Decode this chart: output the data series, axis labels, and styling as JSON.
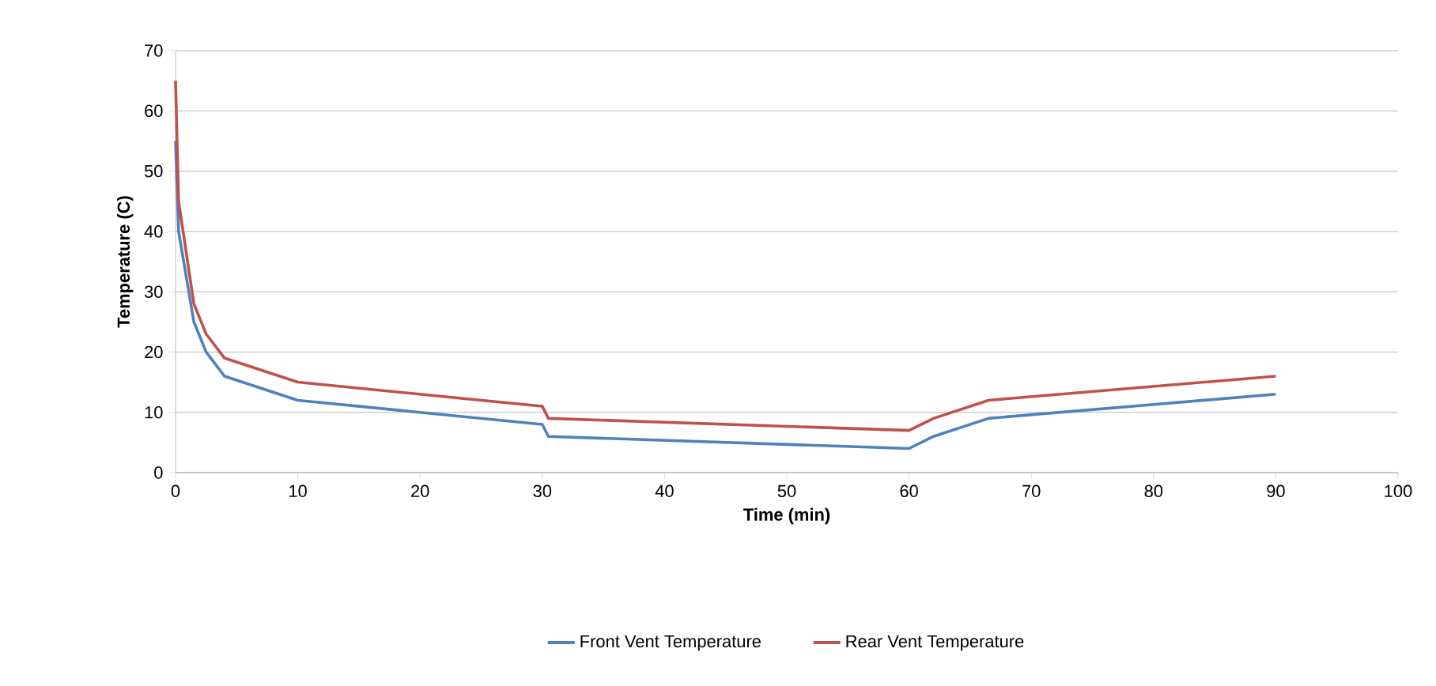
{
  "chart_data": {
    "type": "line",
    "xlabel": "Time (min)",
    "ylabel": "Temperature (C)",
    "xlim": [
      0,
      100
    ],
    "xticks": [
      0,
      10,
      20,
      30,
      40,
      50,
      60,
      70,
      80,
      90,
      100
    ],
    "ylim": [
      0,
      70
    ],
    "yticks": [
      0,
      10,
      20,
      30,
      40,
      50,
      60,
      70
    ],
    "grid": "y",
    "legend": "bottom",
    "series": [
      {
        "name": "Front Vent Temperature",
        "color": "#4f81bd",
        "x": [
          0,
          0.25,
          1.5,
          2.5,
          4,
          10,
          30,
          30.5,
          60,
          62,
          66.5,
          90
        ],
        "values": [
          55,
          40,
          25,
          20,
          16,
          12,
          8,
          6,
          4,
          6,
          9,
          13
        ]
      },
      {
        "name": "Rear Vent Temperature",
        "color": "#c0504d",
        "x": [
          0,
          0.25,
          1.5,
          2.5,
          4,
          10,
          30,
          30.5,
          60,
          62,
          66.5,
          90
        ],
        "values": [
          65,
          45,
          28,
          23,
          19,
          15,
          11,
          9,
          7,
          9,
          12,
          16
        ]
      }
    ]
  }
}
